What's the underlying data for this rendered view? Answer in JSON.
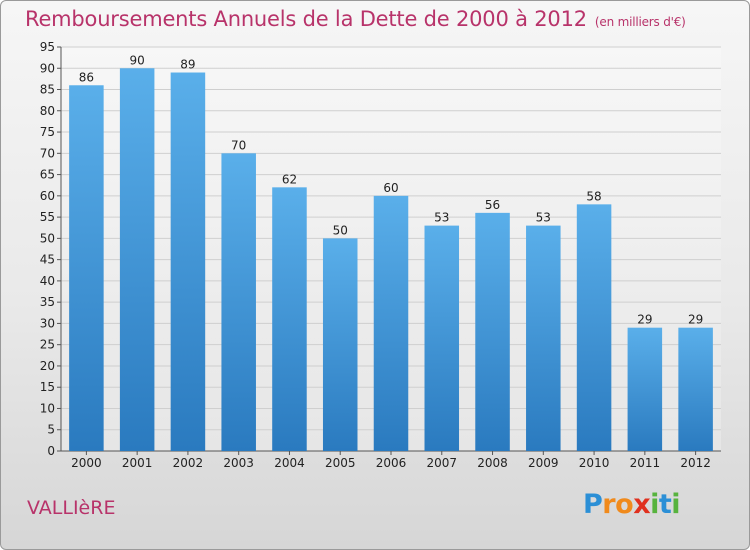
{
  "title": "Remboursements Annuels de la Dette de 2000 à 2012",
  "unit": "(en milliers d'€)",
  "commune": "VALLIèRE",
  "logo": {
    "letters": [
      {
        "ch": "P",
        "color": "#2b8fd6"
      },
      {
        "ch": "r",
        "color": "#f08a1c"
      },
      {
        "ch": "o",
        "color": "#f08a1c"
      },
      {
        "ch": "x",
        "color": "#e0301e"
      },
      {
        "ch": "i",
        "color": "#57b33e"
      },
      {
        "ch": "t",
        "color": "#2b8fd6"
      },
      {
        "ch": "i",
        "color": "#57b33e"
      }
    ]
  },
  "colors": {
    "title": "#b8336a",
    "bar_top": "#5aafea",
    "bar_bottom": "#2a7abf",
    "grid": "#cfcfcf",
    "axis_text": "#222222"
  },
  "chart_data": {
    "type": "bar",
    "categories": [
      "2000",
      "2001",
      "2002",
      "2003",
      "2004",
      "2005",
      "2006",
      "2007",
      "2008",
      "2009",
      "2010",
      "2011",
      "2012"
    ],
    "values": [
      86,
      90,
      89,
      70,
      62,
      50,
      60,
      53,
      56,
      53,
      58,
      29,
      29
    ],
    "ylim": [
      0,
      95
    ],
    "yticks": [
      0,
      5,
      10,
      15,
      20,
      25,
      30,
      35,
      40,
      45,
      50,
      55,
      60,
      65,
      70,
      75,
      80,
      85,
      90,
      95
    ],
    "grid": true,
    "data_labels": true
  }
}
